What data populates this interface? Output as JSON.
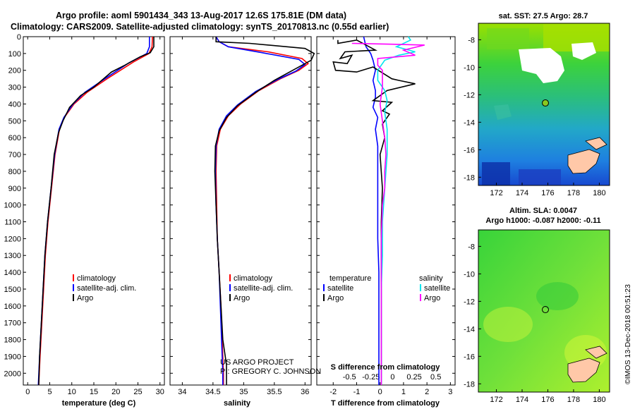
{
  "header": {
    "line1": "Argo profile: aoml 5901434_343 13-Aug-2017 12.6S 175.81E (DM data)",
    "line2": "Climatology: CARS2009. Satellite-adjusted climatology: synTS_20170813.nc (0.55d earlier)"
  },
  "colors": {
    "climatology": "#ff0000",
    "satellite": "#0000ff",
    "argo": "#000000",
    "sat_salinity": "#00e5ee",
    "argo_salinity": "#ff00ff"
  },
  "chart_data": [
    {
      "type": "line",
      "id": "temperature",
      "xlabel": "temperature (deg C)",
      "ylabel": "depth",
      "xlim": [
        -1,
        31
      ],
      "ylim": [
        2070,
        0
      ],
      "xticks": [
        "0",
        "5",
        "10",
        "15",
        "20",
        "25",
        "30"
      ],
      "yticks": [
        "0",
        "100",
        "200",
        "300",
        "400",
        "500",
        "600",
        "700",
        "800",
        "900",
        "1000",
        "1100",
        "1200",
        "1300",
        "1400",
        "1500",
        "1600",
        "1700",
        "1800",
        "1900",
        "2000"
      ],
      "legend": [
        "climatology",
        "satellite-adj. clim.",
        "Argo"
      ],
      "series": [
        {
          "name": "climatology",
          "color": "#ff0000",
          "points": [
            [
              28.3,
              0
            ],
            [
              28.2,
              60
            ],
            [
              27.5,
              100
            ],
            [
              24,
              150
            ],
            [
              18,
              250
            ],
            [
              13.5,
              330
            ],
            [
              10.5,
              400
            ],
            [
              8.3,
              480
            ],
            [
              7.2,
              550
            ],
            [
              6.2,
              700
            ],
            [
              5.4,
              900
            ],
            [
              4.6,
              1100
            ],
            [
              4.0,
              1300
            ],
            [
              3.6,
              1500
            ],
            [
              3.2,
              1700
            ],
            [
              2.8,
              1900
            ],
            [
              2.5,
              2070
            ]
          ]
        },
        {
          "name": "satellite-adj. clim.",
          "color": "#0000ff",
          "points": [
            [
              27.6,
              0
            ],
            [
              27.6,
              60
            ],
            [
              27.0,
              100
            ],
            [
              23,
              155
            ],
            [
              17.5,
              250
            ],
            [
              13,
              330
            ],
            [
              10.3,
              400
            ],
            [
              8.2,
              480
            ],
            [
              7.1,
              550
            ],
            [
              6.1,
              700
            ],
            [
              5.3,
              900
            ],
            [
              4.5,
              1100
            ],
            [
              3.9,
              1300
            ],
            [
              3.5,
              1500
            ],
            [
              3.1,
              1700
            ],
            [
              2.7,
              1900
            ],
            [
              2.4,
              2070
            ]
          ]
        },
        {
          "name": "Argo",
          "color": "#000000",
          "points": [
            [
              28.6,
              0
            ],
            [
              28.6,
              60
            ],
            [
              27.8,
              95
            ],
            [
              25.5,
              120
            ],
            [
              22,
              170
            ],
            [
              19,
              210
            ],
            [
              15,
              300
            ],
            [
              12,
              350
            ],
            [
              9.5,
              420
            ],
            [
              8.0,
              500
            ],
            [
              7.0,
              570
            ],
            [
              6.0,
              700
            ],
            [
              5.3,
              900
            ],
            [
              4.5,
              1100
            ],
            [
              3.9,
              1300
            ],
            [
              3.5,
              1500
            ],
            [
              3.1,
              1700
            ],
            [
              2.7,
              1900
            ],
            [
              2.5,
              2070
            ]
          ]
        }
      ]
    },
    {
      "type": "line",
      "id": "salinity",
      "xlabel": "salinity",
      "xlim": [
        33.8,
        36.1
      ],
      "ylim": [
        2070,
        0
      ],
      "xticks": [
        "34",
        "34.5",
        "35",
        "35.5",
        "36"
      ],
      "legend": [
        "climatology",
        "satellite-adj. clim.",
        "Argo"
      ],
      "series": [
        {
          "name": "climatology",
          "color": "#ff0000",
          "points": [
            [
              34.55,
              0
            ],
            [
              34.6,
              30
            ],
            [
              34.75,
              60
            ],
            [
              35.4,
              90
            ],
            [
              35.95,
              130
            ],
            [
              36.05,
              160
            ],
            [
              35.9,
              200
            ],
            [
              35.6,
              250
            ],
            [
              35.25,
              320
            ],
            [
              34.95,
              400
            ],
            [
              34.75,
              470
            ],
            [
              34.62,
              550
            ],
            [
              34.56,
              650
            ],
            [
              34.55,
              800
            ],
            [
              34.56,
              1000
            ],
            [
              34.57,
              1200
            ],
            [
              34.6,
              1400
            ],
            [
              34.63,
              1600
            ],
            [
              34.65,
              1800
            ],
            [
              34.67,
              2000
            ],
            [
              34.67,
              2070
            ]
          ]
        },
        {
          "name": "satellite-adj. clim.",
          "color": "#0000ff",
          "points": [
            [
              34.55,
              0
            ],
            [
              34.6,
              30
            ],
            [
              34.75,
              60
            ],
            [
              35.3,
              95
            ],
            [
              35.9,
              135
            ],
            [
              36.0,
              165
            ],
            [
              35.85,
              205
            ],
            [
              35.55,
              255
            ],
            [
              35.2,
              325
            ],
            [
              34.9,
              405
            ],
            [
              34.72,
              470
            ],
            [
              34.6,
              550
            ],
            [
              34.55,
              650
            ],
            [
              34.54,
              800
            ],
            [
              34.55,
              1000
            ],
            [
              34.57,
              1200
            ],
            [
              34.6,
              1400
            ],
            [
              34.62,
              1600
            ],
            [
              34.64,
              1800
            ],
            [
              34.66,
              2000
            ],
            [
              34.66,
              2070
            ]
          ]
        },
        {
          "name": "Argo",
          "color": "#000000",
          "points": [
            [
              34.55,
              0
            ],
            [
              34.55,
              30
            ],
            [
              35.1,
              40
            ],
            [
              36.0,
              70
            ],
            [
              36.15,
              100
            ],
            [
              36.1,
              140
            ],
            [
              35.8,
              200
            ],
            [
              35.5,
              260
            ],
            [
              35.2,
              330
            ],
            [
              34.9,
              410
            ],
            [
              34.72,
              480
            ],
            [
              34.6,
              560
            ],
            [
              34.54,
              650
            ],
            [
              34.53,
              800
            ],
            [
              34.55,
              1000
            ],
            [
              34.57,
              1200
            ],
            [
              34.6,
              1400
            ],
            [
              34.63,
              1600
            ],
            [
              34.66,
              1800
            ],
            [
              34.72,
              1950
            ],
            [
              34.72,
              2070
            ]
          ]
        }
      ]
    },
    {
      "type": "line",
      "id": "difference",
      "xlabel": "T difference from climatology",
      "xlabel_top": "S difference from climatology",
      "xlim": [
        -2.7,
        3.2
      ],
      "ylim": [
        2070,
        0
      ],
      "xticks": [
        "-2",
        "-1",
        "0",
        "1",
        "2",
        "3"
      ],
      "xticks_top": [
        "-0.5",
        "-0.25",
        "0",
        "0.25",
        "0.5"
      ],
      "legend_left_title": "temperature",
      "legend_right_title": "salinity",
      "legend_left": [
        "satellite",
        "Argo"
      ],
      "legend_right": [
        "satellite",
        "Argo"
      ],
      "series": [
        {
          "name": "temperature satellite",
          "color": "#0000ff",
          "points": [
            [
              -0.7,
              0
            ],
            [
              -0.6,
              60
            ],
            [
              -0.4,
              100
            ],
            [
              -0.3,
              140
            ],
            [
              -0.2,
              200
            ],
            [
              -0.3,
              260
            ],
            [
              -0.2,
              320
            ],
            [
              -0.2,
              360
            ],
            [
              -0.3,
              420
            ],
            [
              -0.1,
              480
            ],
            [
              -0.2,
              550
            ],
            [
              -0.1,
              650
            ],
            [
              -0.1,
              800
            ],
            [
              -0.1,
              1000
            ],
            [
              -0.1,
              1200
            ],
            [
              -0.05,
              1400
            ],
            [
              -0.05,
              1600
            ],
            [
              -0.05,
              1800
            ],
            [
              -0.05,
              2000
            ],
            [
              -0.05,
              2070
            ]
          ]
        },
        {
          "name": "temperature Argo",
          "color": "#000000",
          "points": [
            [
              -1.8,
              20
            ],
            [
              -1.8,
              40
            ],
            [
              -1.0,
              20
            ],
            [
              -0.2,
              80
            ],
            [
              -1.5,
              90
            ],
            [
              -1.7,
              130
            ],
            [
              -1.2,
              110
            ],
            [
              -1.4,
              160
            ],
            [
              -2.0,
              150
            ],
            [
              -1.9,
              200
            ],
            [
              -1.0,
              210
            ],
            [
              -0.3,
              180
            ],
            [
              0.5,
              250
            ],
            [
              0.8,
              260
            ],
            [
              1.5,
              280
            ],
            [
              0.3,
              320
            ],
            [
              -0.3,
              380
            ],
            [
              0.5,
              390
            ],
            [
              0.1,
              440
            ],
            [
              0.4,
              460
            ],
            [
              0.1,
              520
            ],
            [
              0.2,
              600
            ],
            [
              0.0,
              700
            ],
            [
              0.1,
              900
            ],
            [
              0.05,
              1100
            ],
            [
              0.05,
              1300
            ],
            [
              0.05,
              1500
            ],
            [
              0.05,
              1700
            ],
            [
              0.05,
              1900
            ],
            [
              0.05,
              2070
            ]
          ]
        },
        {
          "name": "salinity satellite",
          "color": "#00e5ee",
          "points": [
            [
              1.2,
              0
            ],
            [
              1.3,
              20
            ],
            [
              0.7,
              60
            ],
            [
              1.5,
              90
            ],
            [
              0.8,
              110
            ],
            [
              0.2,
              140
            ],
            [
              -0.1,
              200
            ],
            [
              -0.1,
              260
            ],
            [
              0.2,
              320
            ],
            [
              0.3,
              380
            ],
            [
              0.2,
              450
            ],
            [
              0.3,
              550
            ],
            [
              0.3,
              700
            ],
            [
              0.2,
              900
            ],
            [
              0.1,
              1100
            ],
            [
              0.1,
              1300
            ],
            [
              0.05,
              1500
            ],
            [
              0.05,
              1700
            ],
            [
              0.05,
              1900
            ],
            [
              0.05,
              2070
            ]
          ]
        },
        {
          "name": "salinity Argo",
          "color": "#ff00ff",
          "points": [
            [
              -1.2,
              40
            ],
            [
              0.5,
              45
            ],
            [
              1.9,
              50
            ],
            [
              1.0,
              80
            ],
            [
              1.5,
              110
            ],
            [
              -0.1,
              130
            ],
            [
              -0.1,
              170
            ],
            [
              0.1,
              200
            ],
            [
              0.1,
              300
            ],
            [
              0.0,
              400
            ],
            [
              0.1,
              500
            ],
            [
              0.2,
              600
            ],
            [
              0.25,
              700
            ],
            [
              0.2,
              800
            ],
            [
              0.2,
              900
            ],
            [
              0.1,
              1000
            ],
            [
              0.05,
              1200
            ],
            [
              0.05,
              1400
            ],
            [
              0.05,
              1600
            ],
            [
              0.05,
              1800
            ],
            [
              0.05,
              2070
            ]
          ]
        }
      ]
    }
  ],
  "maps": {
    "sst_title": "sat. SST: 27.5 Argo: 28.7",
    "sla_title1": "Altim. SLA: 0.0047",
    "sla_title2": "Argo h1000: -0.087 h2000: -0.11",
    "lon_ticks": [
      "172",
      "174",
      "176",
      "178",
      "180"
    ],
    "lat_ticks": [
      "-8",
      "-10",
      "-12",
      "-14",
      "-16",
      "-18"
    ],
    "argo_position": {
      "lon": 175.81,
      "lat": -12.6
    }
  },
  "footer": {
    "project": "US ARGO PROJECT",
    "pi": "PI: GREGORY C. JOHNSON",
    "credit": "©IMOS 13-Dec-2018 00:51:23"
  }
}
